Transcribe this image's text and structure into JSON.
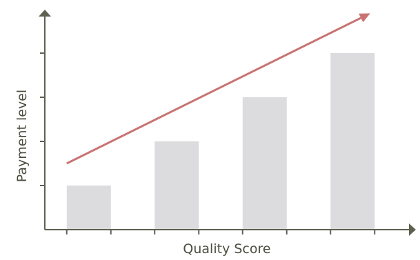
{
  "chart_data": {
    "type": "bar",
    "xlabel": "Quality Score",
    "ylabel": "Payment level",
    "categories": [
      "",
      "",
      "",
      ""
    ],
    "values": [
      1,
      2,
      3,
      4
    ],
    "ylim": [
      0,
      4.8
    ],
    "y_ticks": [
      1,
      2,
      3,
      4
    ],
    "grid": false,
    "trend_arrow": {
      "from": {
        "category_index": 0,
        "value": 1.5
      },
      "to": {
        "category_index": 3.2,
        "value": 4.9
      }
    },
    "colors": {
      "bar": "#dcdcde",
      "axis": "#5d6150",
      "trend": "#c97373",
      "label": "#4a4e3f"
    }
  }
}
